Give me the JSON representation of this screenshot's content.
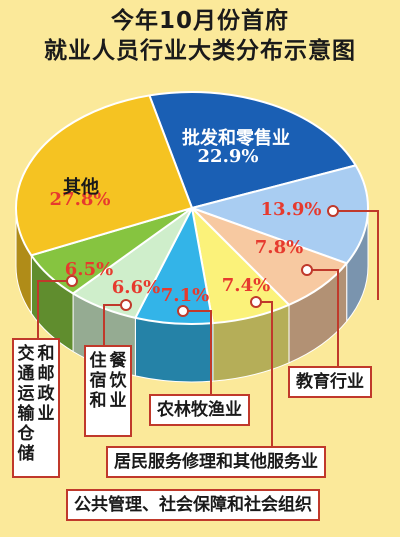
{
  "title": {
    "line1": "今年10月份首府",
    "line2": "就业人员行业大类分布示意图"
  },
  "chart_data": {
    "type": "pie",
    "title": "今年10月份首府就业人员行业大类分布示意图",
    "unit": "%",
    "slices": [
      {
        "label": "批发和零售业",
        "value": 22.9,
        "value_label": "22.9%",
        "color": "#1a5fb4"
      },
      {
        "label": "公共管理、社会保障和社会组织",
        "value": 13.9,
        "value_label": "13.9%",
        "color": "#a9cdf2"
      },
      {
        "label": "教育行业",
        "value": 7.8,
        "value_label": "7.8%",
        "color": "#f7c9a1"
      },
      {
        "label": "居民服务修理和其他服务业",
        "value": 7.4,
        "value_label": "7.4%",
        "color": "#fbf27a"
      },
      {
        "label": "农林牧渔业",
        "value": 7.1,
        "value_label": "7.1%",
        "color": "#33b4e8"
      },
      {
        "label": "住宿和餐饮业",
        "value": 6.6,
        "value_label": "6.6%",
        "color": "#cfeecb"
      },
      {
        "label": "交通运输仓储和邮政业",
        "value": 6.5,
        "value_label": "6.5%",
        "color": "#86c440"
      },
      {
        "label": "其他",
        "value": 27.8,
        "value_label": "27.8%",
        "color": "#f5c322"
      }
    ]
  },
  "labels": {
    "wholesale": "批发和零售业",
    "other": "其他",
    "education": "教育行业",
    "agriculture": "农林牧渔业",
    "resident_services": "居民服务修理和其他服务业",
    "public_admin": "公共管理、社会保障和社会组织",
    "transport_col1": "交通运输仓储",
    "transport_col2": "和邮政业",
    "lodging_col1": "住宿和",
    "lodging_col2": "餐饮业"
  },
  "colors": {
    "background": "#fbe99a",
    "leader_line": "#c0392b",
    "value_text": "#e63a2e",
    "label_text": "#1a1a1a"
  }
}
